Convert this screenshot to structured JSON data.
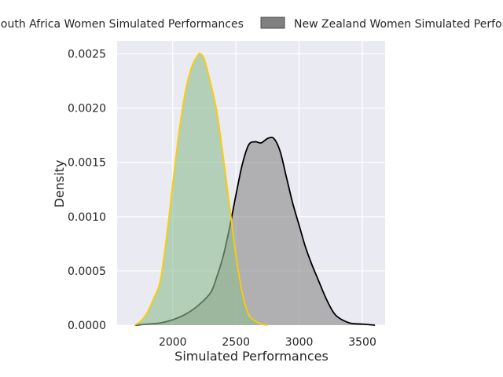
{
  "chart_data": {
    "type": "area",
    "xlabel": "Simulated Performances",
    "ylabel": "Density",
    "xlim": [
      1560,
      3680
    ],
    "ylim": [
      0,
      0.00262
    ],
    "grid": true,
    "background": "#eaeaf2",
    "legend_placement": "top (above plot, clipped at both edges)",
    "x_ticks": [
      {
        "value": 2000,
        "label": "2000"
      },
      {
        "value": 2500,
        "label": "2500"
      },
      {
        "value": 3000,
        "label": "3000"
      },
      {
        "value": 3500,
        "label": "3500"
      }
    ],
    "y_ticks": [
      {
        "value": 0.0,
        "label": "0.0000"
      },
      {
        "value": 0.0005,
        "label": "0.0005"
      },
      {
        "value": 0.001,
        "label": "0.0010"
      },
      {
        "value": 0.0015,
        "label": "0.0015"
      },
      {
        "value": 0.002,
        "label": "0.0020"
      },
      {
        "value": 0.0025,
        "label": "0.0025"
      }
    ],
    "series": [
      {
        "name": "South Africa Women Simulated Performances",
        "legend_label": "South Africa Women Simulated Performances",
        "fill_color": "#8fbc8f",
        "fill_opacity": 0.6,
        "line_color": "#ffcc00",
        "x": [
          1700,
          1750,
          1800,
          1850,
          1900,
          1950,
          2000,
          2050,
          2100,
          2150,
          2200,
          2220,
          2250,
          2300,
          2350,
          2400,
          2450,
          2500,
          2550,
          2600,
          2650,
          2700,
          2750
        ],
        "values": [
          0.0,
          4e-05,
          0.00012,
          0.00025,
          0.0004,
          0.0008,
          0.0013,
          0.00178,
          0.00215,
          0.00238,
          0.00249,
          0.0025,
          0.00245,
          0.00223,
          0.00196,
          0.00155,
          0.0011,
          0.00064,
          0.0003,
          0.0001,
          4e-05,
          1e-05,
          0.0
        ]
      },
      {
        "name": "New Zealand Women Simulated Performances",
        "legend_label": "New Zealand Women Simulated Performances",
        "fill_color": "#808080",
        "fill_opacity": 0.55,
        "line_color": "#000000",
        "x": [
          1700,
          1800,
          1900,
          2000,
          2100,
          2200,
          2300,
          2350,
          2400,
          2450,
          2500,
          2550,
          2600,
          2650,
          2700,
          2750,
          2800,
          2850,
          2900,
          2950,
          3000,
          3050,
          3100,
          3150,
          3200,
          3250,
          3300,
          3400,
          3500,
          3600
        ],
        "values": [
          0.0,
          1e-05,
          2e-05,
          5e-05,
          0.0001,
          0.00018,
          0.0003,
          0.00045,
          0.00064,
          0.0009,
          0.0012,
          0.00148,
          0.00166,
          0.00169,
          0.00168,
          0.00172,
          0.00172,
          0.0016,
          0.00136,
          0.00112,
          0.00092,
          0.00072,
          0.00056,
          0.00042,
          0.00028,
          0.00016,
          8e-05,
          2e-05,
          1e-05,
          0.0
        ]
      }
    ]
  }
}
